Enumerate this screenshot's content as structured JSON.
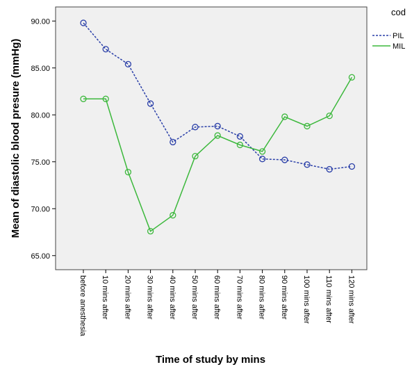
{
  "chart_data": {
    "type": "line",
    "xlabel": "Time of study by mins",
    "ylabel": "Mean of diastolic blood presure (mmHg)",
    "categories": [
      "before anesthesia",
      "10 mins after",
      "20 mins after",
      "30 mins after",
      "40 mins after",
      "50 mins after",
      "60 mins after",
      "70 mins after",
      "80 mins after",
      "90 mins after",
      "100 mins after",
      "110 mins after",
      "120 mins after"
    ],
    "yticks": [
      "65.00",
      "70.00",
      "75.00",
      "80.00",
      "85.00",
      "90.00"
    ],
    "ylim": [
      63.5,
      91.5
    ],
    "grid": false,
    "legend_title": "cod",
    "legend_position": "top-right, outside plot",
    "plot_background": "#f0f0f0",
    "series": [
      {
        "name": "PIL",
        "style": "dashed",
        "color": "#2a3fa8",
        "values": [
          89.8,
          87.0,
          85.4,
          81.2,
          77.1,
          78.7,
          78.8,
          77.7,
          75.3,
          75.2,
          74.7,
          74.2,
          74.5
        ]
      },
      {
        "name": "MIL",
        "style": "solid",
        "color": "#3cb83c",
        "values": [
          81.7,
          81.7,
          73.9,
          67.6,
          69.3,
          75.6,
          77.8,
          76.8,
          76.1,
          79.8,
          78.8,
          79.9,
          84.0
        ]
      }
    ]
  }
}
